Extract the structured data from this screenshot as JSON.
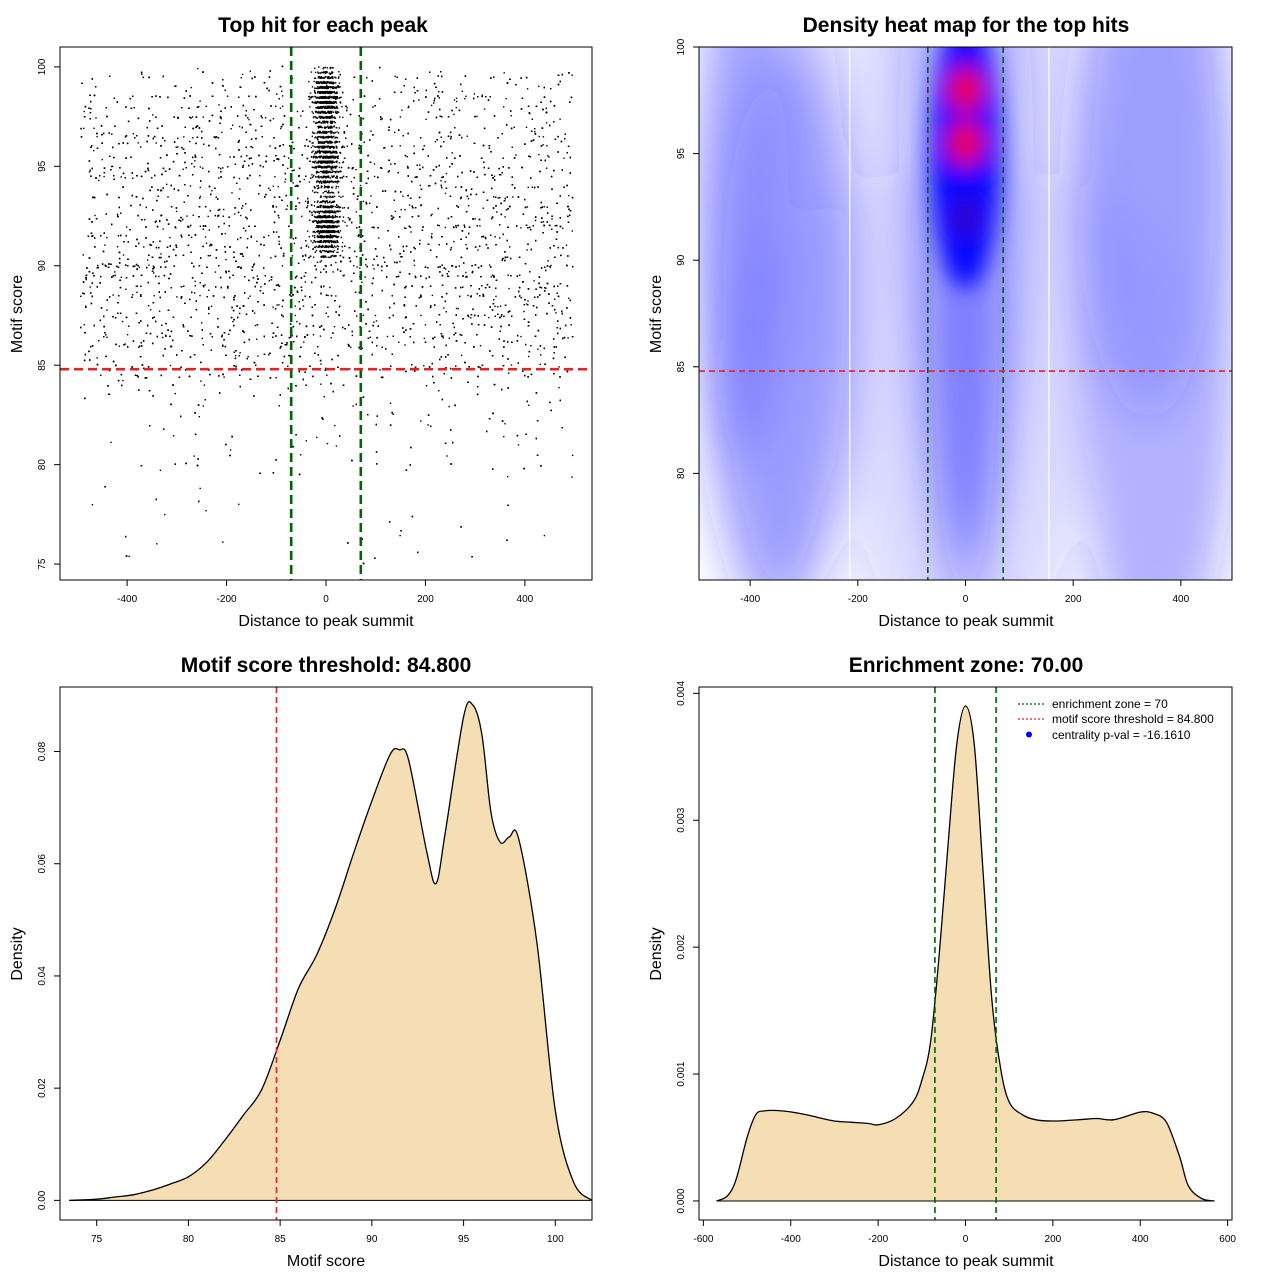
{
  "chart_data": [
    {
      "type": "scatter",
      "title": "Top hit for each peak",
      "xlabel": "Distance to peak summit",
      "ylabel": "Motif score",
      "xlim": [
        -535,
        535
      ],
      "ylim": [
        74.2,
        101.0
      ],
      "xticks": [
        -400,
        -200,
        0,
        200,
        400
      ],
      "yticks": [
        75,
        80,
        85,
        90,
        95,
        100
      ],
      "hlines": [
        {
          "value": 84.8,
          "color": "#dc2626",
          "style": "dashed"
        }
      ],
      "vlines": [
        {
          "value": -70,
          "color": "#006400",
          "style": "dashed"
        },
        {
          "value": 70,
          "color": "#006400",
          "style": "dashed"
        }
      ],
      "points": {
        "x_range": [
          -495,
          495
        ],
        "y_range": [
          75,
          100
        ],
        "color": "#000000",
        "center_enrichment_x": [
          -40,
          40
        ],
        "dense_y_bands": [
          92,
          95.5,
          98.5
        ]
      }
    },
    {
      "type": "heatmap",
      "title": "Density heat map for the top hits",
      "xlabel": "Distance to peak summit",
      "ylabel": "Motif score",
      "xlim": [
        -495,
        495
      ],
      "ylim": [
        75,
        100
      ],
      "xticks": [
        -400,
        -200,
        0,
        200,
        400
      ],
      "yticks": [
        80,
        85,
        90,
        95,
        100
      ],
      "color_scale": [
        "#ffffff",
        "#0000ff",
        "#ff0000"
      ],
      "hotspots": [
        {
          "x": 0,
          "y": 95.5,
          "level": "high"
        },
        {
          "x": 0,
          "y": 98,
          "level": "high"
        },
        {
          "x": 0,
          "y": 92,
          "level": "medium"
        }
      ],
      "hlines": [
        {
          "value": 84.8,
          "color": "#dc2626",
          "style": "dashed"
        }
      ],
      "vlines": [
        {
          "value": -70,
          "color": "#006400",
          "style": "dashed"
        },
        {
          "value": 70,
          "color": "#006400",
          "style": "dashed"
        }
      ]
    },
    {
      "type": "area",
      "title": "Motif score threshold: 84.800",
      "xlabel": "Motif score",
      "ylabel": "Density",
      "xlim": [
        73,
        102
      ],
      "ylim": [
        -0.0035,
        0.0915
      ],
      "xticks": [
        75,
        80,
        85,
        90,
        95,
        100
      ],
      "yticks": [
        0.0,
        0.02,
        0.04,
        0.06,
        0.08
      ],
      "ytick_labels": [
        "0.00",
        "0.02",
        "0.04",
        "0.06",
        "0.08"
      ],
      "fill": "#f5deb3",
      "vlines": [
        {
          "value": 84.8,
          "color": "#dc2626",
          "style": "dashed"
        }
      ],
      "x": [
        73.5,
        75,
        76,
        77,
        78,
        79,
        80,
        81,
        82,
        83,
        84,
        85,
        86,
        87,
        88,
        89,
        90,
        91,
        91.5,
        92,
        93,
        93.5,
        94,
        95,
        95.5,
        96,
        96.5,
        97,
        97.5,
        98,
        99,
        100,
        101,
        102
      ],
      "y": [
        0.0,
        0.0002,
        0.0006,
        0.001,
        0.0018,
        0.0029,
        0.0042,
        0.0068,
        0.0108,
        0.0152,
        0.0198,
        0.0285,
        0.0378,
        0.0438,
        0.052,
        0.0618,
        0.0712,
        0.0795,
        0.0803,
        0.0785,
        0.062,
        0.0565,
        0.0655,
        0.0862,
        0.0883,
        0.083,
        0.069,
        0.0638,
        0.0648,
        0.0645,
        0.0458,
        0.016,
        0.0032,
        0.0
      ]
    },
    {
      "type": "area",
      "title": "Enrichment zone: 70.00",
      "xlabel": "Distance to peak summit",
      "ylabel": "Density",
      "xlim": [
        -610,
        610
      ],
      "ylim": [
        -0.00015,
        0.00405
      ],
      "xticks": [
        -600,
        -400,
        -200,
        0,
        200,
        400,
        600
      ],
      "yticks": [
        0.0,
        0.001,
        0.002,
        0.003,
        0.004
      ],
      "ytick_labels": [
        "0.000",
        "0.001",
        "0.002",
        "0.003",
        "0.004"
      ],
      "fill": "#f5deb3",
      "vlines": [
        {
          "value": -70,
          "color": "#006400",
          "style": "dashed"
        },
        {
          "value": 70,
          "color": "#006400",
          "style": "dashed"
        }
      ],
      "x": [
        -570,
        -545,
        -525,
        -500,
        -480,
        -460,
        -420,
        -380,
        -340,
        -300,
        -260,
        -220,
        -200,
        -160,
        -120,
        -100,
        -80,
        -60,
        -40,
        -20,
        0,
        20,
        40,
        60,
        80,
        100,
        130,
        160,
        200,
        260,
        300,
        340,
        400,
        430,
        460,
        490,
        510,
        540,
        570
      ],
      "y": [
        0.0,
        4e-05,
        0.00017,
        0.0005,
        0.00068,
        0.00071,
        0.00071,
        0.00069,
        0.00066,
        0.00063,
        0.00062,
        0.00061,
        0.0006,
        0.00065,
        0.00078,
        0.00095,
        0.00125,
        0.00195,
        0.0028,
        0.0036,
        0.0039,
        0.0036,
        0.0026,
        0.0016,
        0.00105,
        0.00078,
        0.00068,
        0.00064,
        0.00063,
        0.00064,
        0.00065,
        0.00064,
        0.0007,
        0.00069,
        0.00062,
        0.00035,
        0.00012,
        2e-05,
        0.0
      ],
      "legend": {
        "position": "top-right",
        "entries": [
          {
            "label": "enrichment zone = 70",
            "color": "#006400",
            "style": "dotted-line"
          },
          {
            "label": "motif score threshold = 84.800",
            "color": "#dc2626",
            "style": "dotted-line"
          },
          {
            "label": "centrality p-val = -16.1610",
            "color": "#0000ff",
            "style": "point"
          }
        ]
      }
    }
  ]
}
